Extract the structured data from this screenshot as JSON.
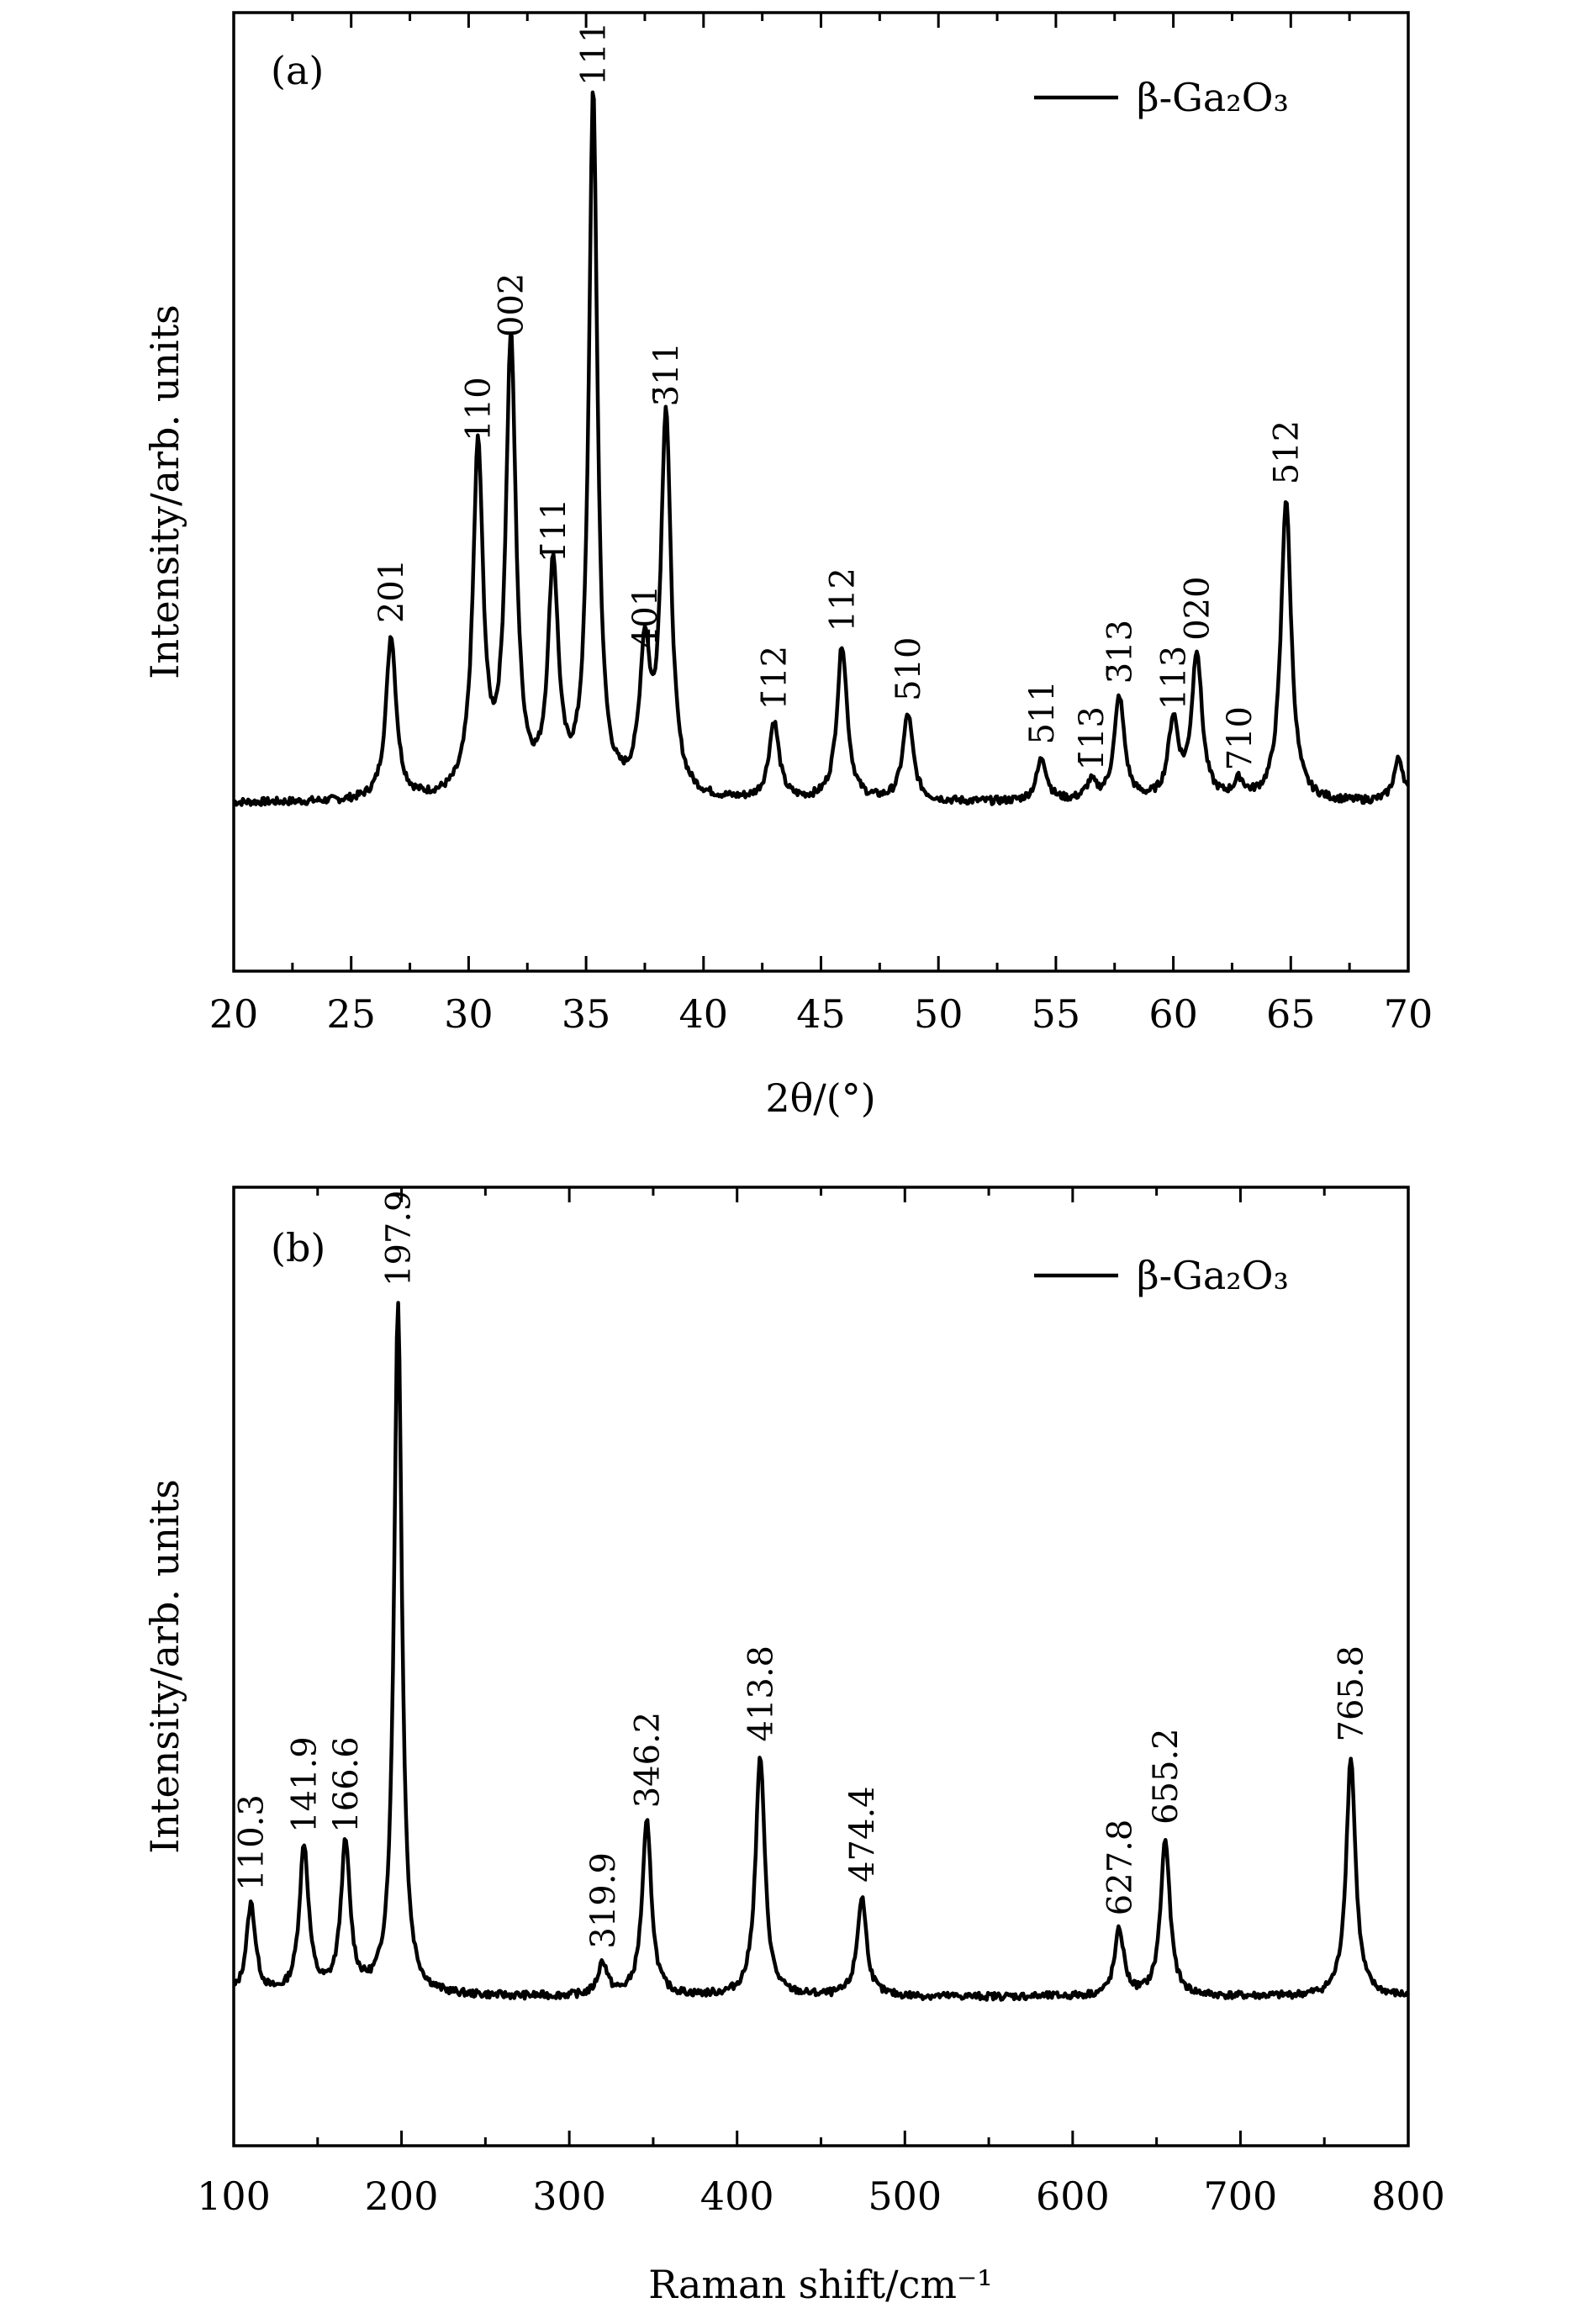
{
  "chart_data": [
    {
      "type": "line",
      "panel_label": "(a)",
      "xlabel": "2θ/(°)",
      "ylabel": "Intensity/arb. units",
      "xlim": [
        20,
        70
      ],
      "ylim": [
        0,
        100
      ],
      "xticks": [
        20,
        25,
        30,
        35,
        40,
        45,
        50,
        55,
        60,
        65,
        70
      ],
      "legend": {
        "text": "β-Ga₂O₃",
        "position": "top-right"
      },
      "series": [
        {
          "name": "β-Ga₂O₃",
          "baseline": 19,
          "peaks": [
            {
              "x": 26.7,
              "y": 38,
              "label": "201"
            },
            {
              "x": 30.4,
              "y": 59,
              "label": "110"
            },
            {
              "x": 31.8,
              "y": 71,
              "label": "002"
            },
            {
              "x": 33.6,
              "y": 45,
              "label": "1̄11"
            },
            {
              "x": 35.3,
              "y": 100,
              "label": "111"
            },
            {
              "x": 37.5,
              "y": 35,
              "label": "401"
            },
            {
              "x": 38.4,
              "y": 63,
              "label": "3̄11"
            },
            {
              "x": 43.0,
              "y": 28,
              "label": "1̄12"
            },
            {
              "x": 45.9,
              "y": 37,
              "label": "112"
            },
            {
              "x": 48.7,
              "y": 29,
              "label": "510"
            },
            {
              "x": 54.4,
              "y": 24,
              "label": "511"
            },
            {
              "x": 56.5,
              "y": 21,
              "label": "1̄13"
            },
            {
              "x": 57.7,
              "y": 31,
              "label": "3̄13"
            },
            {
              "x": 60.0,
              "y": 28,
              "label": "113"
            },
            {
              "x": 61.0,
              "y": 36,
              "label": "020"
            },
            {
              "x": 62.8,
              "y": 21,
              "label": "710"
            },
            {
              "x": 64.8,
              "y": 54,
              "label": "512"
            },
            {
              "x": 69.6,
              "y": 24,
              "label": ""
            }
          ]
        }
      ]
    },
    {
      "type": "line",
      "panel_label": "(b)",
      "xlabel": "Raman shift/cm⁻¹",
      "ylabel": "Intensity/arb. units",
      "xlim": [
        100,
        800
      ],
      "ylim": [
        0,
        100
      ],
      "xticks": [
        100,
        200,
        300,
        400,
        500,
        600,
        700,
        800
      ],
      "legend": {
        "text": "β-Ga₂O₃",
        "position": "top-right"
      },
      "series": [
        {
          "name": "β-Ga₂O₃",
          "baseline": 16,
          "peaks": [
            {
              "x": 110.3,
              "y": 27,
              "label": "110.3"
            },
            {
              "x": 141.9,
              "y": 34,
              "label": "141.9"
            },
            {
              "x": 166.6,
              "y": 34,
              "label": "166.6"
            },
            {
              "x": 197.9,
              "y": 100,
              "label": "197.9"
            },
            {
              "x": 319.9,
              "y": 20,
              "label": "319.9"
            },
            {
              "x": 346.2,
              "y": 37,
              "label": "346.2"
            },
            {
              "x": 413.8,
              "y": 45,
              "label": "413.8"
            },
            {
              "x": 474.4,
              "y": 28,
              "label": "474.4"
            },
            {
              "x": 627.8,
              "y": 24,
              "label": "627.8"
            },
            {
              "x": 655.2,
              "y": 35,
              "label": "655.2"
            },
            {
              "x": 765.8,
              "y": 45,
              "label": "765.8"
            }
          ]
        }
      ]
    }
  ]
}
